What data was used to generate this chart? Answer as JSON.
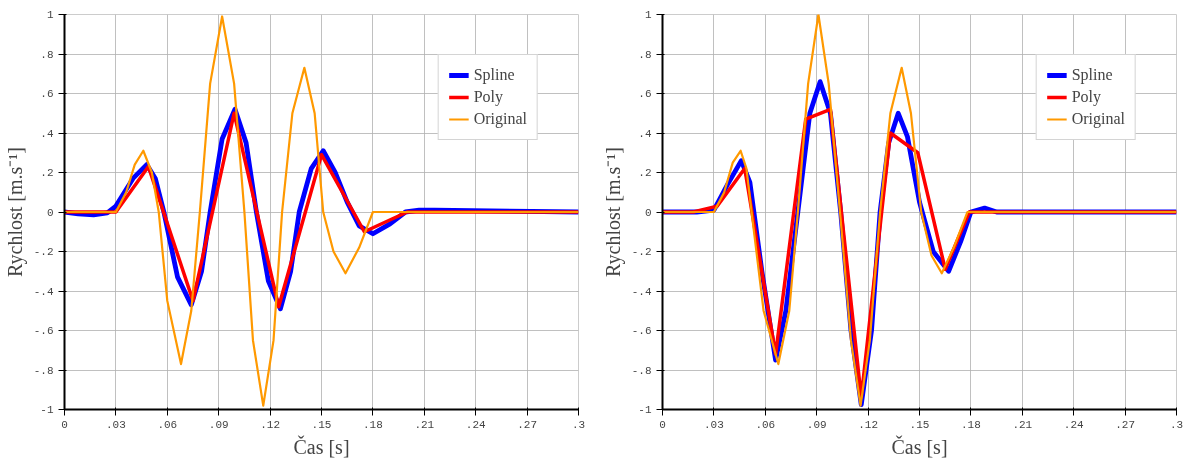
{
  "chart_data": [
    {
      "type": "line",
      "xlabel": "Čas [s]",
      "ylabel": "Rychlost [m.s⁻¹]",
      "xlim": [
        0,
        0.3
      ],
      "ylim": [
        -1,
        1
      ],
      "xticks": [
        0,
        {
          "value": 0.03,
          "label": ".03"
        },
        {
          "value": 0.06,
          "label": ".06"
        },
        {
          "value": 0.09,
          "label": ".09"
        },
        {
          "value": 0.12,
          "label": ".12"
        },
        {
          "value": 0.15,
          "label": ".15"
        },
        {
          "value": 0.18,
          "label": ".18"
        },
        {
          "value": 0.21,
          "label": ".21"
        },
        {
          "value": 0.24,
          "label": ".24"
        },
        {
          "value": 0.27,
          "label": ".27"
        },
        {
          "value": 0.3,
          "label": ".3"
        }
      ],
      "yticks": [
        -1,
        {
          "value": -0.8,
          "label": "-.8"
        },
        {
          "value": -0.6,
          "label": "-.6"
        },
        {
          "value": -0.4,
          "label": "-.4"
        },
        {
          "value": -0.2,
          "label": "-.2"
        },
        0,
        {
          "value": 0.2,
          "label": ".2"
        },
        {
          "value": 0.4,
          "label": ".4"
        },
        {
          "value": 0.6,
          "label": ".6"
        },
        {
          "value": 0.8,
          "label": ".8"
        },
        1
      ],
      "grid": true,
      "legend": "top right",
      "line_style": "solid",
      "marker": "none",
      "series": [
        {
          "name": "Spline",
          "color": "#0000ff",
          "x": [
            0,
            0.008,
            0.017,
            0.025,
            0.03,
            0.04,
            0.048,
            0.053,
            0.058,
            0.066,
            0.074,
            0.08,
            0.085,
            0.092,
            0.0995,
            0.106,
            0.112,
            0.119,
            0.126,
            0.132,
            0.137,
            0.144,
            0.151,
            0.158,
            0.165,
            0.172,
            0.18,
            0.19,
            0.199,
            0.207,
            0.216,
            0.3
          ],
          "values": [
            0,
            -0.01,
            -0.015,
            -0.005,
            0.03,
            0.17,
            0.24,
            0.17,
            0,
            -0.33,
            -0.47,
            -0.3,
            0,
            0.37,
            0.52,
            0.35,
            0,
            -0.35,
            -0.49,
            -0.3,
            0,
            0.22,
            0.31,
            0.2,
            0.05,
            -0.07,
            -0.11,
            -0.06,
            0,
            0.01,
            0.01,
            0
          ]
        },
        {
          "name": "Poly",
          "color": "#ff0000",
          "x": [
            0,
            0.03,
            0.049,
            0.075,
            0.099,
            0.125,
            0.15,
            0.175,
            0.2,
            0.3
          ],
          "values": [
            0,
            0,
            0.23,
            -0.45,
            0.5,
            -0.48,
            0.29,
            -0.1,
            0,
            0
          ]
        },
        {
          "name": "Original",
          "color": "#ff9900",
          "x": [
            0,
            0.03,
            0.036,
            0.041,
            0.046,
            0.051,
            0.055,
            0.06,
            0.068,
            0.074,
            0.079,
            0.085,
            0.092,
            0.099,
            0.105,
            0.11,
            0.116,
            0.122,
            0.127,
            0.133,
            0.14,
            0.146,
            0.151,
            0.157,
            0.164,
            0.172,
            0.18,
            0.3
          ],
          "values": [
            0,
            0,
            0.1,
            0.24,
            0.31,
            0.2,
            0,
            -0.45,
            -0.77,
            -0.5,
            0,
            0.65,
            0.99,
            0.65,
            0,
            -0.65,
            -0.98,
            -0.65,
            0,
            0.5,
            0.73,
            0.5,
            0,
            -0.2,
            -0.31,
            -0.18,
            0,
            0
          ]
        }
      ]
    },
    {
      "type": "line",
      "xlabel": "Čas [s]",
      "ylabel": "Rychlost [m.s⁻¹]",
      "xlim": [
        0,
        0.3
      ],
      "ylim": [
        -1,
        1
      ],
      "xticks": [
        0,
        {
          "value": 0.03,
          "label": ".03"
        },
        {
          "value": 0.06,
          "label": ".06"
        },
        {
          "value": 0.09,
          "label": ".09"
        },
        {
          "value": 0.12,
          "label": ".12"
        },
        {
          "value": 0.15,
          "label": ".15"
        },
        {
          "value": 0.18,
          "label": ".18"
        },
        {
          "value": 0.21,
          "label": ".21"
        },
        {
          "value": 0.24,
          "label": ".24"
        },
        {
          "value": 0.27,
          "label": ".27"
        },
        {
          "value": 0.3,
          "label": ".3"
        }
      ],
      "yticks": [
        -1,
        {
          "value": -0.8,
          "label": "-.8"
        },
        {
          "value": -0.6,
          "label": "-.6"
        },
        {
          "value": -0.4,
          "label": "-.4"
        },
        {
          "value": -0.2,
          "label": "-.2"
        },
        0,
        {
          "value": 0.2,
          "label": ".2"
        },
        {
          "value": 0.4,
          "label": ".4"
        },
        {
          "value": 0.6,
          "label": ".6"
        },
        {
          "value": 0.8,
          "label": ".8"
        },
        1
      ],
      "grid": true,
      "legend": "top right",
      "line_style": "solid",
      "marker": "none",
      "series": [
        {
          "name": "Spline",
          "color": "#0000ff",
          "x": [
            0,
            0.02,
            0.03,
            0.038,
            0.046,
            0.051,
            0.058,
            0.066,
            0.072,
            0.079,
            0.086,
            0.092,
            0.098,
            0.104,
            0.11,
            0.116,
            0.122,
            0.127,
            0.132,
            0.1376,
            0.143,
            0.15,
            0.158,
            0.167,
            0.174,
            0.18,
            0.188,
            0.195,
            0.3
          ],
          "values": [
            0,
            0,
            0.01,
            0.14,
            0.26,
            0.15,
            -0.3,
            -0.75,
            -0.5,
            0,
            0.5,
            0.66,
            0.5,
            0,
            -0.6,
            -0.975,
            -0.6,
            0,
            0.35,
            0.5,
            0.38,
            0.05,
            -0.2,
            -0.3,
            -0.15,
            0,
            0.02,
            0,
            0
          ]
        },
        {
          "name": "Poly",
          "color": "#ff0000",
          "x": [
            0,
            0.018,
            0.032,
            0.048,
            0.066,
            0.0836,
            0.098,
            0.116,
            0.133,
            0.149,
            0.165,
            0.179,
            0.3
          ],
          "values": [
            0,
            0,
            0.03,
            0.22,
            -0.72,
            0.47,
            0.52,
            -0.94,
            0.4,
            0.3,
            -0.29,
            0,
            0
          ]
        },
        {
          "name": "Original",
          "color": "#ff9900",
          "x": [
            0,
            0.03,
            0.036,
            0.041,
            0.0456,
            0.049,
            0.052,
            0.059,
            0.0676,
            0.074,
            0.079,
            0.085,
            0.091,
            0.097,
            0.1036,
            0.11,
            0.1156,
            0.121,
            0.127,
            0.133,
            0.1396,
            0.145,
            0.151,
            0.157,
            0.163,
            0.17,
            0.178,
            0.3
          ],
          "values": [
            0,
            0,
            0.1,
            0.25,
            0.31,
            0.22,
            0,
            -0.5,
            -0.77,
            -0.5,
            0,
            0.65,
            1.0,
            0.65,
            0,
            -0.65,
            -0.98,
            -0.65,
            0,
            0.5,
            0.73,
            0.5,
            0,
            -0.22,
            -0.31,
            -0.18,
            0,
            0
          ]
        }
      ]
    }
  ]
}
